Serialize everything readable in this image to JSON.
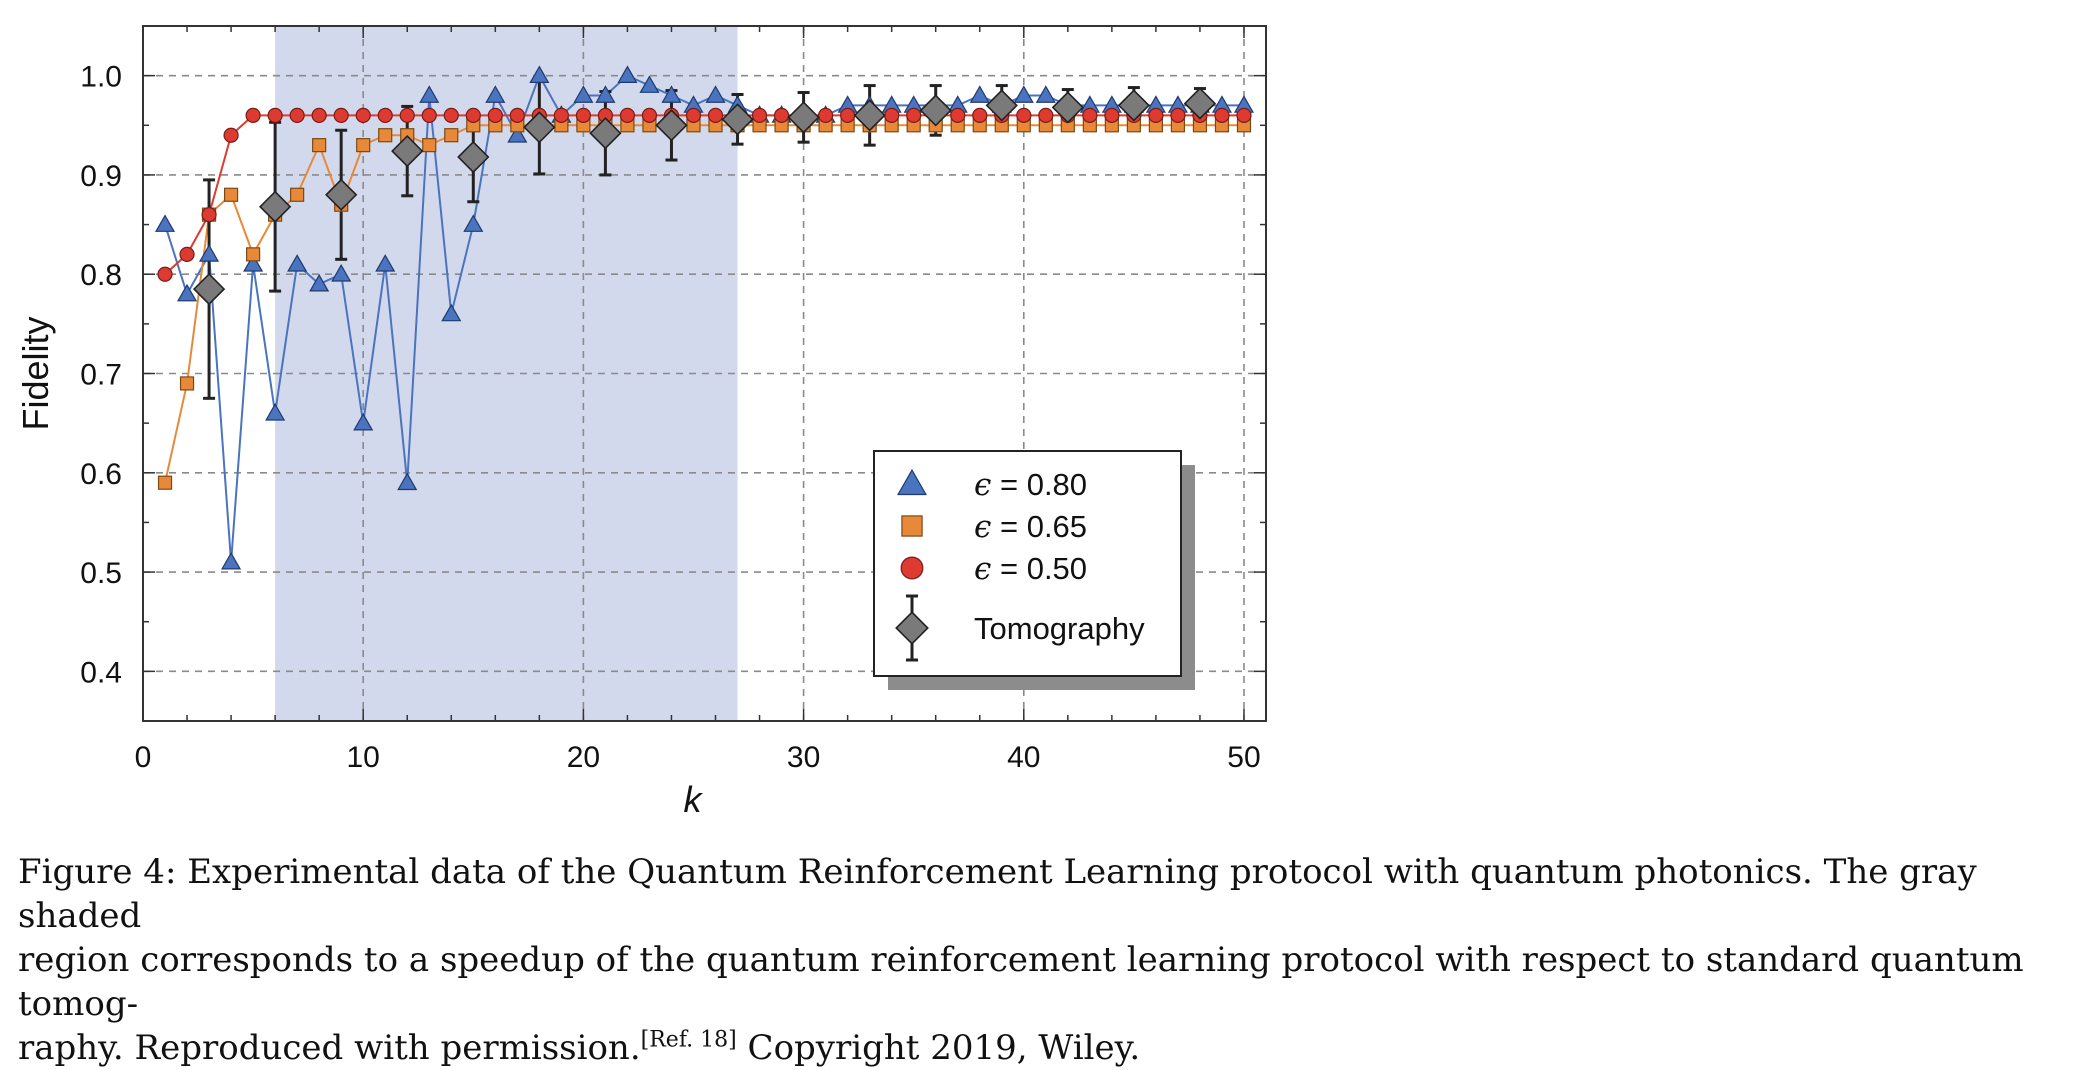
{
  "chart_data": {
    "type": "scatter",
    "xlabel": "k",
    "ylabel": "Fidelity",
    "xlim": [
      0,
      51
    ],
    "ylim": [
      0.35,
      1.05
    ],
    "xticks": [
      "0",
      "10",
      "20",
      "30",
      "40",
      "50"
    ],
    "xtick_values": [
      0,
      10,
      20,
      30,
      40,
      50
    ],
    "yticks": [
      "0.4",
      "0.5",
      "0.6",
      "0.7",
      "0.8",
      "0.9",
      "1.0"
    ],
    "ytick_values": [
      0.4,
      0.5,
      0.6,
      0.7,
      0.8,
      0.9,
      1.0
    ],
    "grid": true,
    "shaded_region": {
      "x_from": 6,
      "x_to": 27,
      "color": "#d3d9ec"
    },
    "legend": {
      "position": "lower-right"
    },
    "series": [
      {
        "name": "ϵ = 0.80",
        "eps_symbol": "ϵ",
        "eps_value": " = 0.80",
        "marker": "triangle",
        "color": "#4a74bf",
        "x": [
          1,
          2,
          3,
          4,
          5,
          6,
          7,
          8,
          9,
          10,
          11,
          12,
          13,
          14,
          15,
          16,
          17,
          18,
          19,
          20,
          21,
          22,
          23,
          24,
          25,
          26,
          27,
          28,
          29,
          30,
          31,
          32,
          33,
          34,
          35,
          36,
          37,
          38,
          39,
          40,
          41,
          42,
          43,
          44,
          45,
          46,
          47,
          48,
          49,
          50
        ],
        "y": [
          0.85,
          0.78,
          0.82,
          0.51,
          0.81,
          0.66,
          0.81,
          0.79,
          0.8,
          0.65,
          0.81,
          0.59,
          0.98,
          0.76,
          0.85,
          0.98,
          0.94,
          1.0,
          0.96,
          0.98,
          0.98,
          1.0,
          0.99,
          0.98,
          0.97,
          0.98,
          0.97,
          0.96,
          0.96,
          0.96,
          0.96,
          0.97,
          0.97,
          0.97,
          0.97,
          0.97,
          0.97,
          0.98,
          0.97,
          0.98,
          0.98,
          0.97,
          0.97,
          0.97,
          0.97,
          0.97,
          0.97,
          0.97,
          0.97,
          0.97
        ]
      },
      {
        "name": "ϵ = 0.65",
        "eps_symbol": "ϵ",
        "eps_value": " = 0.65",
        "marker": "square",
        "color": "#e8893a",
        "x": [
          1,
          2,
          3,
          4,
          5,
          6,
          7,
          8,
          9,
          10,
          11,
          12,
          13,
          14,
          15,
          16,
          17,
          18,
          19,
          20,
          21,
          22,
          23,
          24,
          25,
          26,
          27,
          28,
          29,
          30,
          31,
          32,
          33,
          34,
          35,
          36,
          37,
          38,
          39,
          40,
          41,
          42,
          43,
          44,
          45,
          46,
          47,
          48,
          49,
          50
        ],
        "y": [
          0.59,
          0.69,
          0.86,
          0.88,
          0.82,
          0.86,
          0.88,
          0.93,
          0.87,
          0.93,
          0.94,
          0.94,
          0.93,
          0.94,
          0.95,
          0.95,
          0.95,
          0.95,
          0.95,
          0.95,
          0.95,
          0.95,
          0.95,
          0.95,
          0.95,
          0.95,
          0.95,
          0.95,
          0.95,
          0.95,
          0.95,
          0.95,
          0.95,
          0.95,
          0.95,
          0.95,
          0.95,
          0.95,
          0.95,
          0.95,
          0.95,
          0.95,
          0.95,
          0.95,
          0.95,
          0.95,
          0.95,
          0.95,
          0.95,
          0.95
        ]
      },
      {
        "name": "ϵ = 0.50",
        "eps_symbol": "ϵ",
        "eps_value": " = 0.50",
        "marker": "circle",
        "color": "#dd3b32",
        "x": [
          1,
          2,
          3,
          4,
          5,
          6,
          7,
          8,
          9,
          10,
          11,
          12,
          13,
          14,
          15,
          16,
          17,
          18,
          19,
          20,
          21,
          22,
          23,
          24,
          25,
          26,
          27,
          28,
          29,
          30,
          31,
          32,
          33,
          34,
          35,
          36,
          37,
          38,
          39,
          40,
          41,
          42,
          43,
          44,
          45,
          46,
          47,
          48,
          49,
          50
        ],
        "y": [
          0.8,
          0.82,
          0.86,
          0.94,
          0.96,
          0.96,
          0.96,
          0.96,
          0.96,
          0.96,
          0.96,
          0.96,
          0.96,
          0.96,
          0.96,
          0.96,
          0.96,
          0.96,
          0.96,
          0.96,
          0.96,
          0.96,
          0.96,
          0.96,
          0.96,
          0.96,
          0.96,
          0.96,
          0.96,
          0.96,
          0.96,
          0.96,
          0.96,
          0.96,
          0.96,
          0.96,
          0.96,
          0.96,
          0.96,
          0.96,
          0.96,
          0.96,
          0.96,
          0.96,
          0.96,
          0.96,
          0.96,
          0.96,
          0.96,
          0.96
        ]
      },
      {
        "name": "Tomography",
        "marker": "diamond",
        "color": "#7a7a7a",
        "error_bars": true,
        "x": [
          3,
          6,
          9,
          12,
          15,
          18,
          21,
          24,
          27,
          30,
          33,
          36,
          39,
          42,
          45,
          48
        ],
        "y": [
          0.785,
          0.868,
          0.88,
          0.924,
          0.918,
          0.948,
          0.942,
          0.95,
          0.956,
          0.958,
          0.96,
          0.965,
          0.97,
          0.968,
          0.97,
          0.972
        ],
        "err": [
          0.11,
          0.085,
          0.065,
          0.045,
          0.045,
          0.047,
          0.042,
          0.035,
          0.025,
          0.025,
          0.03,
          0.025,
          0.02,
          0.018,
          0.018,
          0.015
        ]
      }
    ]
  },
  "caption": {
    "line1": "Figure 4: Experimental data of the Quantum Reinforcement Learning protocol with quantum photonics. The gray shaded",
    "line2": "region corresponds to a speedup of the quantum reinforcement learning protocol with respect to standard quantum tomog-",
    "line3_start": "raphy. Reproduced with permission.",
    "line3_ref": "[Ref. 18]",
    "line3_end": " Copyright 2019, Wiley."
  }
}
